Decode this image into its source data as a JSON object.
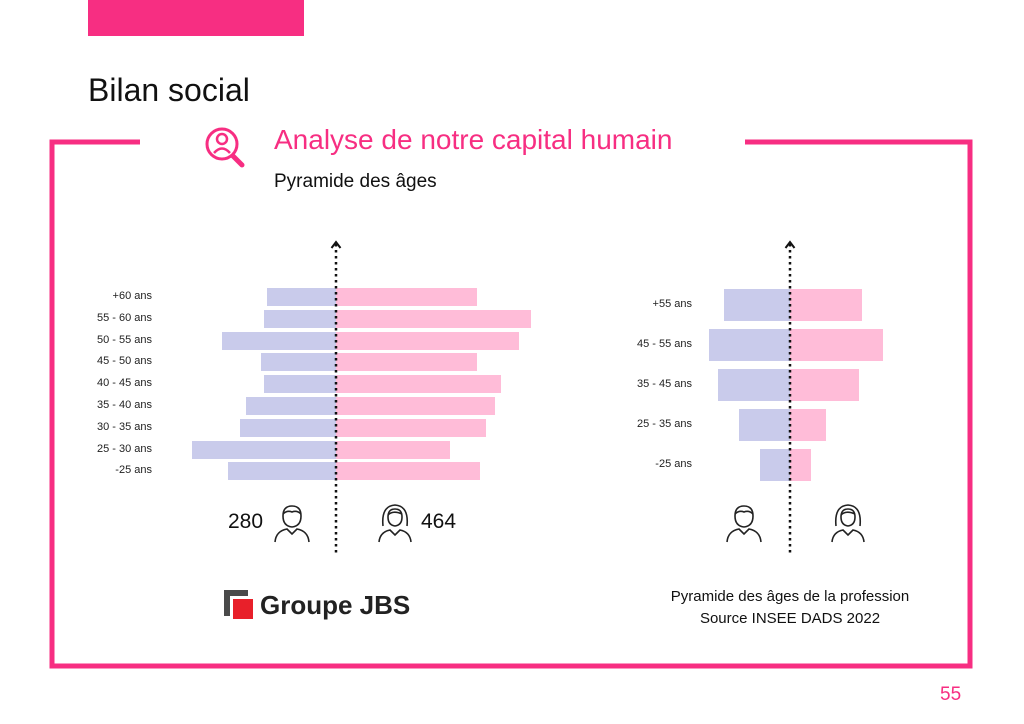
{
  "colors": {
    "accent": "#f72e82",
    "men": "#c9cbeb",
    "women": "#ffbcd8",
    "text": "#111111"
  },
  "header": {
    "title": "Bilan social"
  },
  "section": {
    "title": "Analyse de notre capital humain",
    "subtitle": "Pyramide des âges",
    "icon": "search-person-icon"
  },
  "chart_data": [
    {
      "type": "bar",
      "orientation": "horizontal-pyramid",
      "categories": [
        "+60 ans",
        "55 - 60 ans",
        "50 - 55 ans",
        "45 - 50 ans",
        "40 - 45 ans",
        "35 - 40 ans",
        "30 - 35 ans",
        "25 - 30 ans",
        "-25 ans"
      ],
      "series": [
        {
          "values": [
            23,
            24,
            38,
            25,
            24,
            30,
            32,
            48,
            36
          ]
        },
        {
          "values": [
            47,
            65,
            61,
            47,
            55,
            53,
            50,
            38,
            48
          ]
        }
      ],
      "totals": {
        "men": "280",
        "women": "464"
      },
      "icons": {
        "men": "man-icon",
        "women": "woman-icon"
      },
      "xlim": [
        -50,
        70
      ]
    },
    {
      "type": "bar",
      "orientation": "horizontal-pyramid",
      "categories": [
        "+55 ans",
        "45 - 55 ans",
        "35 - 45 ans",
        "25 - 35 ans",
        "-25 ans"
      ],
      "series": [
        {
          "values": [
            22,
            27,
            24,
            17,
            10
          ]
        },
        {
          "values": [
            24,
            31,
            23,
            12,
            7
          ]
        }
      ],
      "icons": {
        "men": "man-icon",
        "women": "woman-icon"
      },
      "xlim": [
        -30,
        35
      ]
    }
  ],
  "logo": {
    "text": "Groupe JBS"
  },
  "caption": {
    "line1": "Pyramide des âges de la profession",
    "line2": "Source INSEE  DADS 2022"
  },
  "page_number": "55"
}
